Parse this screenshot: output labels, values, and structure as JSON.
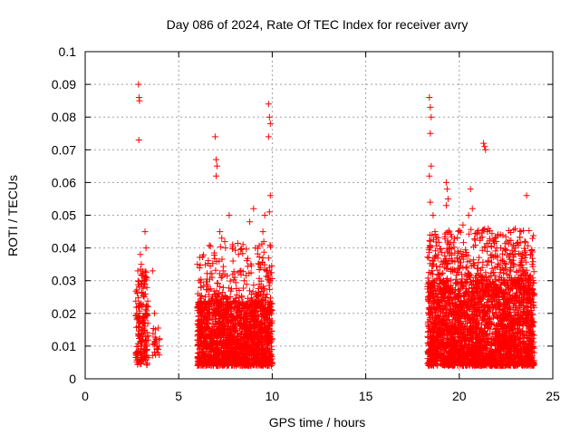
{
  "chart_data": {
    "type": "scatter",
    "title": "Day 086 of 2024, Rate Of TEC Index for receiver avry",
    "xlabel": "GPS time / hours",
    "ylabel": "ROTI / TECUs",
    "xlim": [
      0,
      25
    ],
    "ylim": [
      0,
      0.1
    ],
    "xticks": [
      0,
      5,
      10,
      15,
      20,
      25
    ],
    "xtick_labels": [
      "0",
      "5",
      "10",
      "15",
      "20",
      "25"
    ],
    "yticks": [
      0,
      0.01,
      0.02,
      0.03,
      0.04,
      0.05,
      0.06,
      0.07,
      0.08,
      0.09,
      0.1
    ],
    "ytick_labels": [
      "0",
      "0.01",
      "0.02",
      "0.03",
      "0.04",
      "0.05",
      "0.06",
      "0.07",
      "0.08",
      "0.09",
      "0.1"
    ],
    "grid": true,
    "marker": "+",
    "colors": {
      "points": "#ff0000",
      "grid": "#a0a0a0",
      "axis": "#000000"
    },
    "series": [
      {
        "name": "ROTI",
        "points": [
          [
            2.85,
            0.09
          ],
          [
            2.88,
            0.086
          ],
          [
            2.9,
            0.085
          ],
          [
            2.87,
            0.073
          ],
          [
            2.95,
            0.038
          ],
          [
            3.0,
            0.035
          ],
          [
            3.05,
            0.03
          ],
          [
            2.9,
            0.02
          ],
          [
            3.1,
            0.028
          ],
          [
            3.2,
            0.045
          ],
          [
            3.25,
            0.04
          ],
          [
            3.15,
            0.025
          ],
          [
            3.0,
            0.015
          ],
          [
            3.1,
            0.012
          ],
          [
            3.2,
            0.018
          ],
          [
            3.3,
            0.022
          ],
          [
            3.05,
            0.008
          ],
          [
            3.2,
            0.007
          ],
          [
            3.3,
            0.01
          ],
          [
            2.95,
            0.005
          ],
          [
            3.6,
            0.033
          ],
          [
            3.7,
            0.02
          ],
          [
            3.75,
            0.015
          ],
          [
            3.8,
            0.012
          ],
          [
            3.85,
            0.01
          ],
          [
            3.9,
            0.009
          ],
          [
            6.0,
            0.035
          ],
          [
            6.1,
            0.03
          ],
          [
            6.2,
            0.028
          ],
          [
            6.5,
            0.02
          ],
          [
            6.8,
            0.025
          ],
          [
            6.95,
            0.074
          ],
          [
            7.0,
            0.067
          ],
          [
            7.05,
            0.065
          ],
          [
            7.0,
            0.062
          ],
          [
            7.2,
            0.045
          ],
          [
            7.3,
            0.043
          ],
          [
            7.5,
            0.04
          ],
          [
            7.7,
            0.05
          ],
          [
            7.9,
            0.036
          ],
          [
            8.0,
            0.031
          ],
          [
            8.2,
            0.038
          ],
          [
            8.5,
            0.03
          ],
          [
            8.8,
            0.048
          ],
          [
            9.0,
            0.052
          ],
          [
            9.1,
            0.04
          ],
          [
            9.3,
            0.035
          ],
          [
            9.5,
            0.045
          ],
          [
            9.6,
            0.05
          ],
          [
            9.8,
            0.084
          ],
          [
            9.85,
            0.08
          ],
          [
            9.9,
            0.078
          ],
          [
            9.8,
            0.074
          ],
          [
            9.9,
            0.056
          ],
          [
            9.85,
            0.051
          ],
          [
            9.7,
            0.033
          ],
          [
            9.9,
            0.03
          ],
          [
            18.4,
            0.086
          ],
          [
            18.45,
            0.083
          ],
          [
            18.5,
            0.08
          ],
          [
            18.45,
            0.075
          ],
          [
            18.4,
            0.062
          ],
          [
            18.5,
            0.065
          ],
          [
            18.45,
            0.054
          ],
          [
            18.6,
            0.05
          ],
          [
            18.7,
            0.045
          ],
          [
            19.3,
            0.06
          ],
          [
            19.35,
            0.058
          ],
          [
            19.4,
            0.055
          ],
          [
            19.3,
            0.053
          ],
          [
            19.5,
            0.04
          ],
          [
            20.2,
            0.047
          ],
          [
            20.5,
            0.05
          ],
          [
            20.6,
            0.058
          ],
          [
            20.7,
            0.052
          ],
          [
            21.3,
            0.072
          ],
          [
            21.35,
            0.071
          ],
          [
            21.4,
            0.07
          ],
          [
            21.5,
            0.045
          ],
          [
            22.0,
            0.04
          ],
          [
            22.5,
            0.035
          ],
          [
            23.0,
            0.04
          ],
          [
            23.3,
            0.045
          ],
          [
            23.5,
            0.042
          ],
          [
            23.6,
            0.056
          ],
          [
            23.8,
            0.038
          ],
          [
            23.9,
            0.035
          ]
        ],
        "bands": [
          {
            "x": [
              2.7,
              3.4
            ],
            "y": [
              0.004,
              0.034
            ],
            "n": 170
          },
          {
            "x": [
              3.6,
              4.0
            ],
            "y": [
              0.007,
              0.016
            ],
            "n": 20
          },
          {
            "x": [
              6.0,
              10.0
            ],
            "y": [
              0.004,
              0.024
            ],
            "n": 1700
          },
          {
            "x": [
              6.0,
              10.0
            ],
            "y": [
              0.024,
              0.042
            ],
            "n": 180
          },
          {
            "x": [
              18.3,
              24.0
            ],
            "y": [
              0.004,
              0.03
            ],
            "n": 2600
          },
          {
            "x": [
              18.3,
              24.0
            ],
            "y": [
              0.03,
              0.046
            ],
            "n": 380
          }
        ]
      }
    ]
  }
}
